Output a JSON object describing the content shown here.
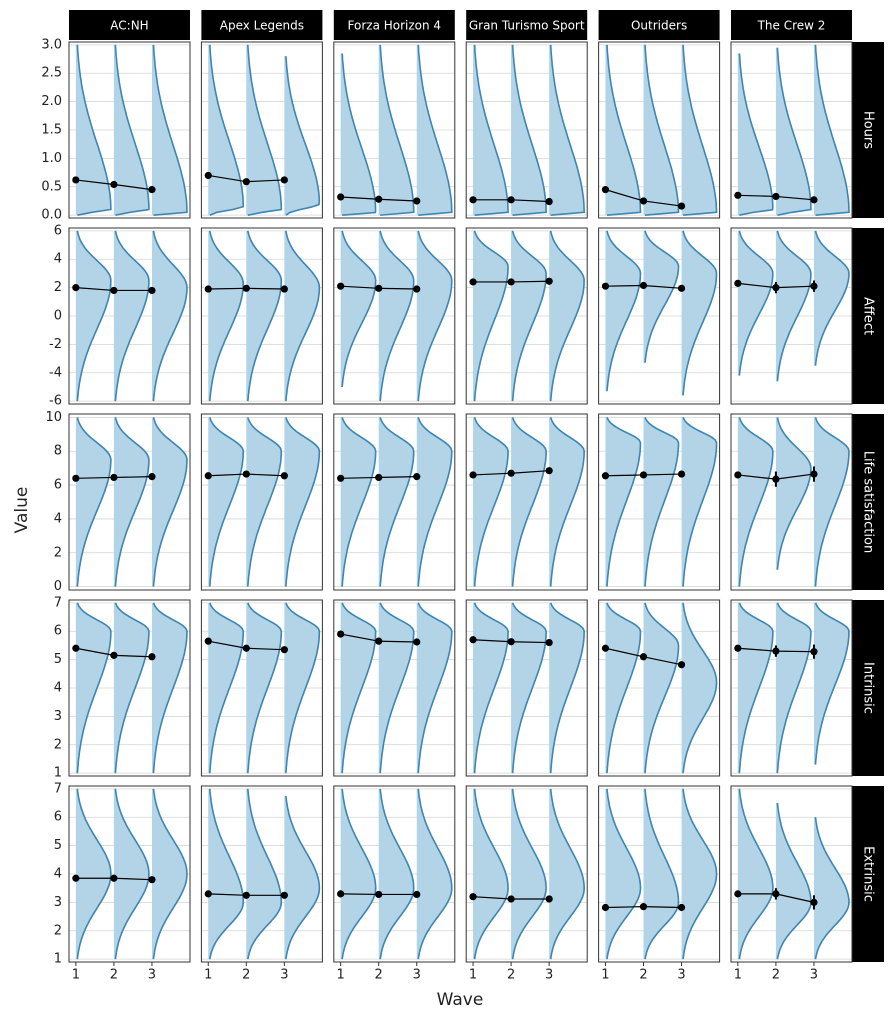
{
  "chart_data": {
    "type": "violin",
    "xlabel": "Wave",
    "ylabel": "Value",
    "xlim": [
      0.82,
      4.0
    ],
    "xticks": [
      1,
      2,
      3
    ],
    "grid": true,
    "fill_color": "#b3d3e6",
    "line_color": "#3a86b4",
    "games": [
      "AC:NH",
      "Apex Legends",
      "Forza Horizon 4",
      "Gran Turismo Sport",
      "Outriders",
      "The Crew 2"
    ],
    "rows": [
      {
        "name": "Hours",
        "ylim": [
          -0.05,
          3.05
        ],
        "yticks": [
          {
            "value": 0,
            "label": "0.0"
          },
          {
            "value": 0.5,
            "label": "0.5"
          },
          {
            "value": 1,
            "label": "1.0"
          },
          {
            "value": 1.5,
            "label": "1.5"
          },
          {
            "value": 2,
            "label": "2.0"
          },
          {
            "value": 2.5,
            "label": "2.5"
          },
          {
            "value": 3,
            "label": "3.0"
          }
        ],
        "panels": [
          {
            "means": [
              0.62,
              0.54,
              0.45
            ],
            "violins": [
              [
                0,
                3,
                0.1
              ],
              [
                0,
                3,
                0.1
              ],
              [
                0,
                3,
                0.05
              ]
            ]
          },
          {
            "means": [
              0.7,
              0.59,
              0.62
            ],
            "violins": [
              [
                0,
                3,
                0.15
              ],
              [
                0,
                3,
                0.1
              ],
              [
                0,
                2.8,
                0.2
              ]
            ]
          },
          {
            "means": [
              0.32,
              0.28,
              0.25
            ],
            "violins": [
              [
                0,
                2.85,
                0.05
              ],
              [
                0,
                3,
                0.05
              ],
              [
                0,
                3,
                0.05
              ]
            ]
          },
          {
            "means": [
              0.27,
              0.27,
              0.24
            ],
            "violins": [
              [
                0,
                3,
                0.05
              ],
              [
                0,
                3,
                0.05
              ],
              [
                0,
                3,
                0.05
              ]
            ]
          },
          {
            "means": [
              0.45,
              0.25,
              0.16
            ],
            "violins": [
              [
                0,
                3,
                0.05
              ],
              [
                0,
                3,
                0.02
              ],
              [
                0,
                3,
                0.02
              ]
            ]
          },
          {
            "means": [
              0.35,
              0.33,
              0.27
            ],
            "violins": [
              [
                0,
                2.85,
                0.1
              ],
              [
                0,
                2.95,
                0.1
              ],
              [
                0,
                3,
                0.05
              ]
            ]
          }
        ]
      },
      {
        "name": "Affect",
        "ylim": [
          -6.2,
          6.2
        ],
        "yticks": [
          -6,
          -4,
          -2,
          0,
          2,
          4,
          6
        ],
        "panels": [
          {
            "means": [
              2.0,
              1.8,
              1.8
            ],
            "violins": [
              [
                -6,
                6,
                2.5
              ],
              [
                -6,
                6,
                2.5
              ],
              [
                -6,
                6,
                2
              ]
            ]
          },
          {
            "means": [
              1.9,
              1.95,
              1.9
            ],
            "violins": [
              [
                -6,
                6,
                2.3
              ],
              [
                -6,
                6,
                2.5
              ],
              [
                -6,
                6,
                2
              ]
            ]
          },
          {
            "means": [
              2.1,
              1.95,
              1.9
            ],
            "violins": [
              [
                -5,
                6,
                2.5
              ],
              [
                -6,
                6,
                2.5
              ],
              [
                -6,
                6,
                2.5
              ]
            ]
          },
          {
            "means": [
              2.4,
              2.4,
              2.45
            ],
            "violins": [
              [
                -6,
                6,
                3.5
              ],
              [
                -6,
                6,
                3
              ],
              [
                -6,
                6,
                2.5
              ]
            ]
          },
          {
            "means": [
              2.1,
              2.15,
              1.95
            ],
            "violins": [
              [
                -5.3,
                6,
                3
              ],
              [
                -3.3,
                6,
                3.5
              ],
              [
                -5.6,
                6,
                3
              ]
            ]
          },
          {
            "means": [
              2.3,
              2.0,
              2.1
            ],
            "errors": [
              0.2,
              0.4,
              0.4
            ],
            "violins": [
              [
                -4.2,
                6,
                3
              ],
              [
                -4.6,
                6,
                3
              ],
              [
                -3.5,
                6,
                3
              ]
            ]
          }
        ]
      },
      {
        "name": "Life satisfaction",
        "ylim": [
          -0.2,
          10.2
        ],
        "yticks": [
          0,
          2,
          4,
          6,
          8,
          10
        ],
        "panels": [
          {
            "means": [
              6.4,
              6.45,
              6.5
            ],
            "violins": [
              [
                0,
                10,
                7.5
              ],
              [
                0,
                10,
                7.5
              ],
              [
                0,
                10,
                7.5
              ]
            ]
          },
          {
            "means": [
              6.55,
              6.65,
              6.55
            ],
            "violins": [
              [
                0,
                10,
                8
              ],
              [
                0,
                10,
                8
              ],
              [
                0,
                10,
                8
              ]
            ]
          },
          {
            "means": [
              6.4,
              6.45,
              6.5
            ],
            "violins": [
              [
                0,
                10,
                8
              ],
              [
                0,
                10,
                8
              ],
              [
                0,
                10,
                8
              ]
            ]
          },
          {
            "means": [
              6.6,
              6.7,
              6.85
            ],
            "violins": [
              [
                0,
                10,
                8
              ],
              [
                0,
                10,
                8
              ],
              [
                0,
                10,
                8
              ]
            ]
          },
          {
            "means": [
              6.55,
              6.6,
              6.65
            ],
            "violins": [
              [
                0,
                10,
                8.5
              ],
              [
                0,
                10,
                8.5
              ],
              [
                0,
                10,
                8.5
              ]
            ]
          },
          {
            "means": [
              6.6,
              6.35,
              6.65
            ],
            "errors": [
              0.2,
              0.45,
              0.45
            ],
            "violins": [
              [
                0,
                10,
                8
              ],
              [
                1,
                10,
                7
              ],
              [
                0,
                10,
                8
              ]
            ]
          }
        ]
      },
      {
        "name": "Intrinsic",
        "ylim": [
          0.9,
          7.1
        ],
        "yticks": [
          1,
          2,
          3,
          4,
          5,
          6,
          7
        ],
        "panels": [
          {
            "means": [
              5.4,
              5.15,
              5.1
            ],
            "violins": [
              [
                1,
                7,
                6
              ],
              [
                1,
                7,
                6
              ],
              [
                1,
                7,
                6
              ]
            ]
          },
          {
            "means": [
              5.65,
              5.4,
              5.35
            ],
            "violins": [
              [
                1,
                7,
                6
              ],
              [
                1,
                7,
                6
              ],
              [
                1,
                7,
                6
              ]
            ]
          },
          {
            "means": [
              5.9,
              5.65,
              5.62
            ],
            "violins": [
              [
                1,
                7,
                6
              ],
              [
                1,
                7,
                6
              ],
              [
                1,
                7,
                6
              ]
            ]
          },
          {
            "means": [
              5.7,
              5.63,
              5.6
            ],
            "violins": [
              [
                1,
                7,
                6
              ],
              [
                1,
                7,
                6
              ],
              [
                1,
                7,
                6
              ]
            ]
          },
          {
            "means": [
              5.4,
              5.1,
              4.82
            ],
            "violins": [
              [
                1,
                7,
                6
              ],
              [
                1,
                7,
                5.5
              ],
              [
                1,
                7,
                4.2
              ]
            ]
          },
          {
            "means": [
              5.4,
              5.3,
              5.28
            ],
            "errors": [
              0.1,
              0.2,
              0.25
            ],
            "violins": [
              [
                1,
                7,
                6
              ],
              [
                1,
                7,
                6
              ],
              [
                1.3,
                7,
                6
              ]
            ]
          }
        ]
      },
      {
        "name": "Extrinsic",
        "ylim": [
          0.9,
          7.1
        ],
        "yticks": [
          1,
          2,
          3,
          4,
          5,
          6,
          7
        ],
        "panels": [
          {
            "means": [
              3.85,
              3.85,
              3.8
            ],
            "violins": [
              [
                1,
                7,
                4
              ],
              [
                1,
                7,
                4
              ],
              [
                1,
                7,
                4
              ]
            ]
          },
          {
            "means": [
              3.3,
              3.25,
              3.25
            ],
            "violins": [
              [
                1,
                7,
                3
              ],
              [
                1,
                7,
                3
              ],
              [
                1,
                6.75,
                3.5
              ]
            ]
          },
          {
            "means": [
              3.3,
              3.28,
              3.28
            ],
            "violins": [
              [
                1,
                7,
                3.5
              ],
              [
                1,
                7,
                3.5
              ],
              [
                1,
                7,
                3.5
              ]
            ]
          },
          {
            "means": [
              3.2,
              3.12,
              3.12
            ],
            "violins": [
              [
                1,
                7,
                3.5
              ],
              [
                1,
                7,
                3.5
              ],
              [
                1,
                7,
                3.5
              ]
            ]
          },
          {
            "means": [
              2.82,
              2.85,
              2.82
            ],
            "violins": [
              [
                1,
                7,
                3.5
              ],
              [
                1,
                7,
                3
              ],
              [
                1,
                7,
                4
              ]
            ]
          },
          {
            "means": [
              3.3,
              3.3,
              3.0
            ],
            "errors": [
              0.1,
              0.2,
              0.25
            ],
            "violins": [
              [
                1,
                7,
                3.5
              ],
              [
                1,
                6.5,
                3
              ],
              [
                1,
                6,
                3
              ]
            ]
          }
        ]
      }
    ]
  }
}
